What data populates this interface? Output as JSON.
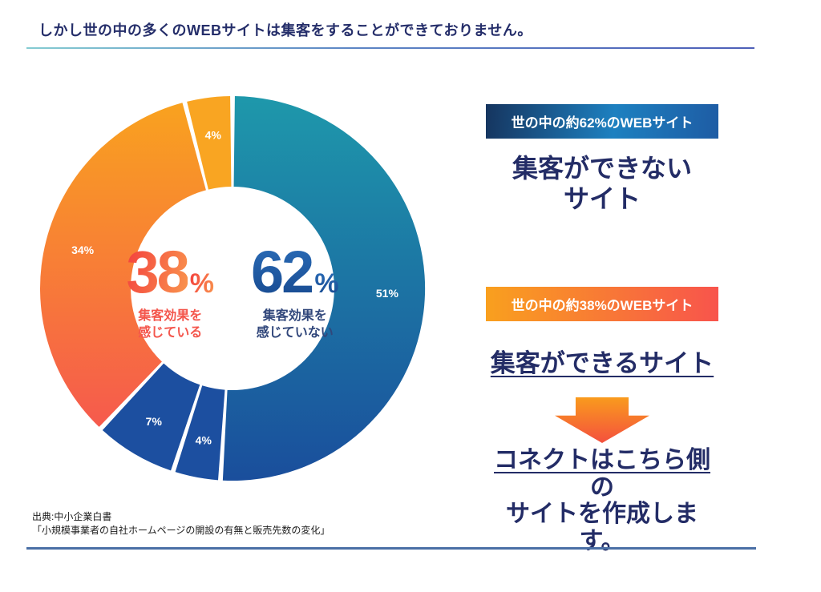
{
  "page": {
    "title": "しかし世の中の多くのWEBサイトは集客をすることができておりません。",
    "source": {
      "line1": "出典:中小企業白書",
      "line2": "「小規模事業者の自社ホームページの開設の有無と販売先数の変化」"
    },
    "colors": {
      "navy_text": "#232c66",
      "top_rule_left": "#85ccd2",
      "top_rule_right": "#4e5fb8",
      "bottom_rule": "#4a6fa5"
    }
  },
  "chart_data": {
    "type": "pie",
    "subtype": "donut",
    "start_angle_deg": 0,
    "direction": "clockwise",
    "inner_radius_ratio": 0.53,
    "legend": "none",
    "segments": [
      {
        "label": "51%",
        "value": 51,
        "group": "集客効果を感じていない",
        "color_top": "#1E98AB",
        "color_bottom": "#1A4E9C",
        "label_color": "#FFFFFF"
      },
      {
        "label": "4%",
        "value": 4,
        "group": "集客効果を感じていない",
        "color_top": "#1C4FA0",
        "color_bottom": "#1C4FA0",
        "label_color": "#FFFFFF"
      },
      {
        "label": "7%",
        "value": 7,
        "group": "集客効果を感じていない",
        "color_top": "#1C4FA0",
        "color_bottom": "#1C4FA0",
        "label_color": "#FFFFFF"
      },
      {
        "label": "34%",
        "value": 34,
        "group": "集客効果を感じている",
        "color_top": "#F9A21F",
        "color_bottom": "#F65A4D",
        "label_color": "#FFFFFF"
      },
      {
        "label": "4%",
        "value": 4,
        "group": "集客効果を感じている",
        "color_top": "#F9A522",
        "color_bottom": "#F9A522",
        "label_color": "#FFFFFF"
      }
    ],
    "center": {
      "left": {
        "value": "38",
        "unit": "%",
        "caption_line1": "集客効果を",
        "caption_line2": "感じている",
        "color_start": "#F4473F",
        "color_end": "#F9924D",
        "caption_color": "#F4564C"
      },
      "right": {
        "value": "62",
        "unit": "%",
        "caption_line1": "集客効果を",
        "caption_line2": "感じていない",
        "color_start": "#2A6CB7",
        "color_end": "#17498F",
        "caption_color": "#31477B"
      }
    }
  },
  "right_panel": {
    "badge_62": {
      "text": "世の中の約62%のWEBサイト",
      "gradient_left": "#16355F",
      "gradient_mid": "#1D80C0",
      "gradient_right": "#1E5CA4"
    },
    "headline_62_line1": "集客ができない",
    "headline_62_line2": "サイト",
    "badge_38": {
      "text": "世の中の約38%のWEBサイト",
      "gradient_left": "#F9A01E",
      "gradient_right": "#F8544C"
    },
    "headline_38": "集客ができるサイト",
    "arrow_icon": "down-arrow",
    "conclusion": {
      "line1_underlined": "コネクトはこちら側",
      "line1_rest": "の",
      "line2": "サイトを作成します。"
    }
  }
}
